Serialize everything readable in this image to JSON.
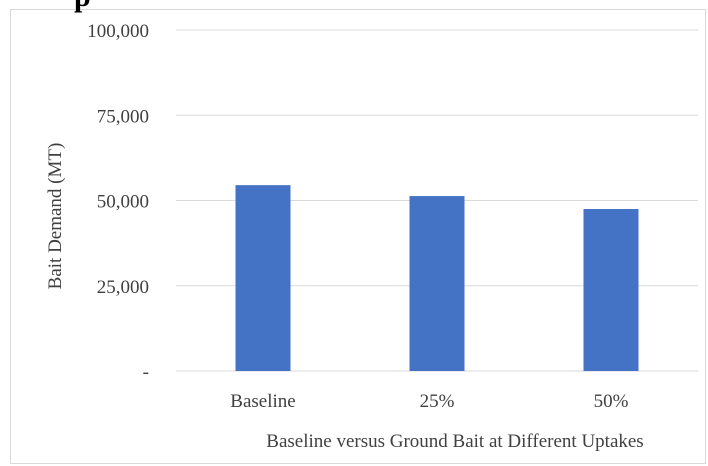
{
  "clipped_heading": "p",
  "chart_data": {
    "type": "bar",
    "categories": [
      "Baseline",
      "25%",
      "50%"
    ],
    "values": [
      54500,
      51300,
      47500
    ],
    "ylim": [
      0,
      100000
    ],
    "yticks": [
      0,
      25000,
      50000,
      75000,
      100000
    ],
    "ytick_labels": [
      "-",
      "25,000",
      "50,000",
      "75,000",
      "100,000"
    ],
    "xlabel": "Baseline versus Ground Bait at Different Uptakes",
    "ylabel": "Bait Demand (MT)",
    "grid": true,
    "legend": "none",
    "bar_color": "#4472c4",
    "grid_color": "#d9d9d9"
  }
}
